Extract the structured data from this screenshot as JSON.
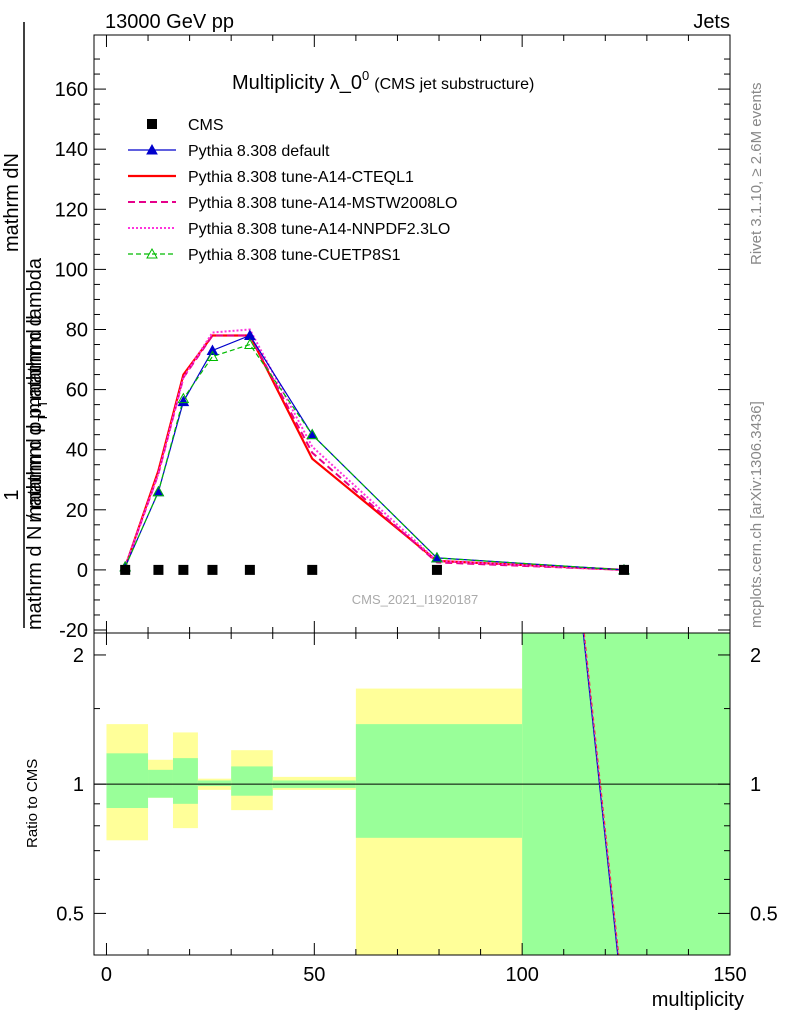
{
  "header": {
    "left": "13000 GeV pp",
    "right": "Jets"
  },
  "side_text": {
    "top": "Rivet 3.1.10, ≥ 2.6M events",
    "bottom": "mcplots.cern.ch [arXiv:1306.3436]"
  },
  "watermark": "CMS_2021_I1920187",
  "colors": {
    "band_inner": "#99ff99",
    "band_outer": "#ffff99",
    "default": "#0000cc",
    "cteql1": "#ff0000",
    "mstw": "#e6008a",
    "nnpdf": "#ff33dd",
    "cuetp": "#00bb00"
  },
  "chart_data": [
    {
      "type": "line",
      "title_main": "Multiplicity λ_0",
      "title_sup": "0",
      "title_suffix": "(CMS jet substructure)",
      "ylabel_prefix": "1",
      "ylabel_line1": "mathrm d N / mathrm d p",
      "ylabel_sub1": "T",
      "ylabel_line2": "mathrm d",
      "ylabel_num": "mathrm dN",
      "ylabel_den_a": "mathrm d p",
      "ylabel_den_sub": "T",
      "ylabel_den_b": "mathrm d lambda",
      "xlim": [
        -3,
        150
      ],
      "ylim": [
        -21,
        178
      ],
      "yticks": [
        "-20",
        "0",
        "20",
        "40",
        "60",
        "80",
        "100",
        "120",
        "140",
        "160"
      ],
      "x": [
        4.5,
        12.5,
        18.5,
        25.5,
        34.5,
        49.5,
        79.5,
        124.5
      ],
      "series": [
        {
          "name": "CMS",
          "style": "data",
          "values": [
            0,
            0,
            0,
            0,
            0,
            0,
            0,
            0
          ]
        },
        {
          "name": "Pythia 8.308 default",
          "style": "default",
          "values": [
            1,
            26,
            56,
            73,
            78,
            45,
            4,
            0
          ]
        },
        {
          "name": "Pythia 8.308 tune-A14-CTEQL1",
          "style": "cteql1",
          "values": [
            1,
            33,
            65,
            78,
            78,
            37,
            3,
            0
          ]
        },
        {
          "name": "Pythia 8.308 tune-A14-MSTW2008LO",
          "style": "mstw",
          "values": [
            1,
            32,
            64,
            78,
            78,
            39,
            2.5,
            0
          ]
        },
        {
          "name": "Pythia 8.308 tune-A14-NNPDF2.3LO",
          "style": "nnpdf",
          "values": [
            1,
            32,
            64,
            79,
            80,
            41,
            3,
            0
          ]
        },
        {
          "name": "Pythia 8.308 tune-CUETP8S1",
          "style": "cuetp",
          "values": [
            1,
            26,
            57,
            71,
            75,
            45,
            4,
            0
          ]
        }
      ]
    },
    {
      "type": "area",
      "ylabel": "Ratio to CMS",
      "xlabel": "multiplicity",
      "xlim": [
        -3,
        150
      ],
      "ylim": [
        0.4,
        2.25
      ],
      "log_y": true,
      "xticks": [
        "0",
        "50",
        "100",
        "150"
      ],
      "yticks": [
        "0.5",
        "1",
        "2"
      ],
      "bins": [
        {
          "lo": 0,
          "hi": 10,
          "inner": [
            0.88,
            1.18
          ],
          "outer": [
            0.74,
            1.38
          ]
        },
        {
          "lo": 10,
          "hi": 16,
          "inner": [
            0.93,
            1.08
          ],
          "outer": [
            0.93,
            1.14
          ]
        },
        {
          "lo": 16,
          "hi": 22,
          "inner": [
            0.9,
            1.15
          ],
          "outer": [
            0.79,
            1.32
          ]
        },
        {
          "lo": 22,
          "hi": 30,
          "inner": [
            0.99,
            1.02
          ],
          "outer": [
            0.97,
            1.03
          ]
        },
        {
          "lo": 30,
          "hi": 40,
          "inner": [
            0.94,
            1.1
          ],
          "outer": [
            0.87,
            1.2
          ]
        },
        {
          "lo": 40,
          "hi": 60,
          "inner": [
            0.98,
            1.02
          ],
          "outer": [
            0.97,
            1.04
          ]
        },
        {
          "lo": 60,
          "hi": 100,
          "inner": [
            0.75,
            1.38
          ],
          "outer": [
            0.4,
            1.67
          ]
        },
        {
          "lo": 100,
          "hi": 150,
          "inner": [
            0.4,
            2.25
          ],
          "outer": [
            0.4,
            2.25
          ]
        }
      ],
      "ratio_line": {
        "x": [
          114.7,
          123.0
        ],
        "y": [
          2.25,
          0.4
        ]
      }
    }
  ]
}
